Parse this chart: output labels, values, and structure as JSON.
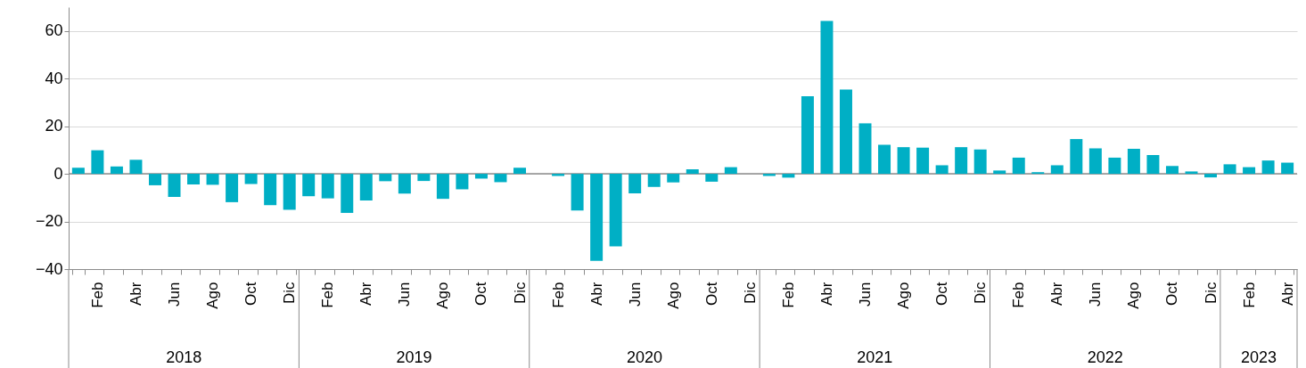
{
  "chart_data": {
    "type": "bar",
    "categories": [
      null,
      "Feb",
      null,
      "Abr",
      null,
      "Jun",
      null,
      "Ago",
      null,
      "Oct",
      null,
      "Dic",
      null,
      "Feb",
      null,
      "Abr",
      null,
      "Jun",
      null,
      "Ago",
      null,
      "Oct",
      null,
      "Dic",
      null,
      "Feb",
      null,
      "Abr",
      null,
      "Jun",
      null,
      "Ago",
      null,
      "Oct",
      null,
      "Dic",
      null,
      "Feb",
      null,
      "Abr",
      null,
      "Jun",
      null,
      "Ago",
      null,
      "Oct",
      null,
      "Dic",
      null,
      "Feb",
      null,
      "Abr",
      null,
      "Jun",
      null,
      "Ago",
      null,
      "Oct",
      null,
      "Dic",
      null,
      "Feb",
      null,
      "Abr"
    ],
    "series": [
      {
        "color": "#00afc5",
        "values": [
          2.6,
          9.9,
          3.1,
          5.9,
          -4.8,
          -9.7,
          -4.5,
          -4.6,
          -11.9,
          -4.3,
          -13.2,
          -15.1,
          -9.4,
          -10.3,
          -16.4,
          -11.2,
          -3.1,
          -8.3,
          -3.0,
          -10.5,
          -6.5,
          -2.0,
          -3.5,
          2.6,
          0,
          -0.9,
          -15.4,
          -36.5,
          -30.5,
          -8.2,
          -5.5,
          -3.6,
          1.9,
          -3.3,
          2.8,
          0,
          -0.9,
          -1.6,
          32.6,
          64.2,
          35.4,
          21.2,
          12.2,
          11.2,
          11.0,
          3.6,
          11.2,
          10.2,
          1.4,
          6.8,
          0.7,
          3.6,
          14.6,
          10.7,
          6.8,
          10.5,
          7.9,
          3.3,
          1.0,
          -1.5,
          4.0,
          2.8,
          5.6,
          4.7
        ]
      }
    ],
    "annotations": [
      "2018",
      "2019",
      "2020",
      "2021",
      "2022",
      "2023"
    ],
    "ylim": [
      -40,
      70
    ],
    "yticks": [
      -40,
      -20,
      0,
      20,
      40,
      60
    ],
    "grid": "y"
  }
}
